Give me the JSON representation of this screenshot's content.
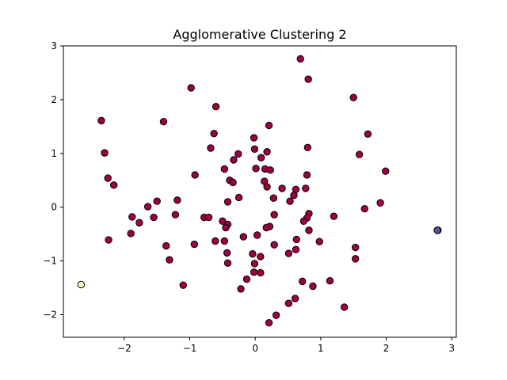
{
  "chart_data": {
    "type": "scatter",
    "title": "Agglomerative Clustering 2",
    "xlim": [
      -2.93,
      3.07
    ],
    "ylim": [
      -2.42,
      3.0
    ],
    "x_ticks": [
      -2,
      -1,
      0,
      1,
      2,
      3
    ],
    "y_ticks": [
      -2,
      -1,
      0,
      1,
      2,
      3
    ],
    "x_tick_labels": [
      "−2",
      "−1",
      "0",
      "1",
      "2",
      "3"
    ],
    "y_tick_labels": [
      "−2",
      "−1",
      "0",
      "1",
      "2",
      "3"
    ],
    "grid": false,
    "colors": {
      "cluster_0": "#9e0142",
      "cluster_1": "#ffffbf",
      "cluster_2": "#5e4fa2",
      "edge": "#000000"
    },
    "series": [
      {
        "cluster": 0,
        "points": [
          [
            0.69,
            2.76
          ],
          [
            0.81,
            2.38
          ],
          [
            -0.98,
            2.22
          ],
          [
            1.5,
            2.04
          ],
          [
            -0.6,
            1.87
          ],
          [
            -2.35,
            1.61
          ],
          [
            -1.4,
            1.59
          ],
          [
            0.21,
            1.52
          ],
          [
            -0.63,
            1.37
          ],
          [
            1.72,
            1.36
          ],
          [
            -0.02,
            1.29
          ],
          [
            -0.68,
            1.1
          ],
          [
            -0.01,
            1.08
          ],
          [
            0.8,
            1.11
          ],
          [
            -2.3,
            1.01
          ],
          [
            0.18,
            1.03
          ],
          [
            -0.26,
            0.99
          ],
          [
            1.59,
            0.98
          ],
          [
            0.09,
            0.92
          ],
          [
            -0.33,
            0.88
          ],
          [
            -0.47,
            0.71
          ],
          [
            0.01,
            0.72
          ],
          [
            0.15,
            0.71
          ],
          [
            0.23,
            0.69
          ],
          [
            1.99,
            0.67
          ],
          [
            -0.92,
            0.6
          ],
          [
            0.79,
            0.6
          ],
          [
            -2.25,
            0.54
          ],
          [
            -0.39,
            0.5
          ],
          [
            -0.34,
            0.46
          ],
          [
            0.14,
            0.48
          ],
          [
            -2.16,
            0.41
          ],
          [
            0.18,
            0.38
          ],
          [
            0.41,
            0.35
          ],
          [
            0.62,
            0.33
          ],
          [
            0.77,
            0.35
          ],
          [
            -0.25,
            0.18
          ],
          [
            0.59,
            0.22
          ],
          [
            0.28,
            0.17
          ],
          [
            0.53,
            0.11
          ],
          [
            -1.5,
            0.11
          ],
          [
            -1.19,
            0.13
          ],
          [
            -0.42,
            0.1
          ],
          [
            1.91,
            0.08
          ],
          [
            -1.64,
            0.01
          ],
          [
            1.67,
            -0.03
          ],
          [
            -1.22,
            -0.14
          ],
          [
            0.29,
            -0.14
          ],
          [
            0.82,
            -0.12
          ],
          [
            -1.88,
            -0.18
          ],
          [
            -1.55,
            -0.19
          ],
          [
            -0.78,
            -0.19
          ],
          [
            -0.71,
            -0.19
          ],
          [
            0.79,
            -0.2
          ],
          [
            1.2,
            -0.17
          ],
          [
            -0.5,
            -0.26
          ],
          [
            0.74,
            -0.26
          ],
          [
            -1.77,
            -0.29
          ],
          [
            -0.42,
            -0.32
          ],
          [
            -0.45,
            -0.38
          ],
          [
            0.22,
            -0.36
          ],
          [
            0.17,
            -0.38
          ],
          [
            2.79,
            -0.43
          ],
          [
            0.82,
            -0.43
          ],
          [
            -1.9,
            -0.49
          ],
          [
            0.03,
            -0.52
          ],
          [
            -0.18,
            -0.55
          ],
          [
            -2.24,
            -0.61
          ],
          [
            -0.61,
            -0.63
          ],
          [
            -0.47,
            -0.63
          ],
          [
            0.63,
            -0.6
          ],
          [
            0.98,
            -0.64
          ],
          [
            -0.93,
            -0.69
          ],
          [
            0.29,
            -0.7
          ],
          [
            -1.36,
            -0.72
          ],
          [
            1.53,
            -0.75
          ],
          [
            0.62,
            -0.79
          ],
          [
            0.51,
            -0.86
          ],
          [
            -0.43,
            -0.85
          ],
          [
            -0.04,
            -0.87
          ],
          [
            0.08,
            -0.92
          ],
          [
            1.53,
            -0.96
          ],
          [
            -1.31,
            -0.98
          ],
          [
            -0.42,
            -1.04
          ],
          [
            -0.01,
            -1.05
          ],
          [
            -0.02,
            -1.21
          ],
          [
            0.08,
            -1.22
          ],
          [
            -0.13,
            -1.34
          ],
          [
            1.14,
            -1.37
          ],
          [
            0.72,
            -1.38
          ],
          [
            -1.1,
            -1.45
          ],
          [
            0.88,
            -1.47
          ],
          [
            -0.22,
            -1.52
          ],
          [
            0.61,
            -1.7
          ],
          [
            0.51,
            -1.79
          ],
          [
            1.36,
            -1.86
          ],
          [
            0.32,
            -2.01
          ],
          [
            0.21,
            -2.15
          ]
        ]
      },
      {
        "cluster": 1,
        "points": [
          [
            -2.66,
            -1.44
          ]
        ]
      },
      {
        "cluster": 2,
        "points": [
          [
            2.78,
            -0.43
          ]
        ]
      }
    ]
  }
}
